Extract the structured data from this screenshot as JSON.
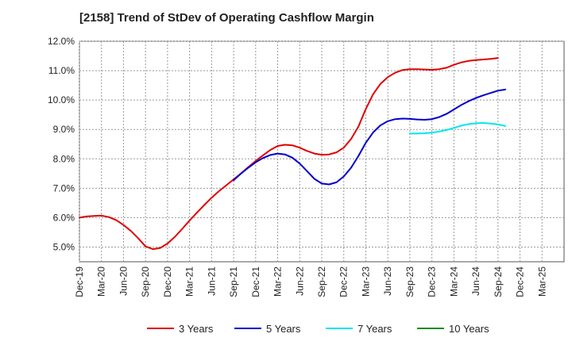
{
  "chart_data": {
    "type": "line",
    "title": "[2158]  Trend of StDev of Operating Cashflow Margin",
    "xlabel": "",
    "ylabel": "",
    "ylim": [
      4.5,
      12.0
    ],
    "yticks": [
      "12.0%",
      "11.0%",
      "10.0%",
      "9.0%",
      "8.0%",
      "7.0%",
      "6.0%",
      "5.0%"
    ],
    "ytick_values": [
      12,
      11,
      10,
      9,
      8,
      7,
      6,
      5
    ],
    "x_ticks": [
      "Dec-19",
      "Mar-20",
      "Jun-20",
      "Sep-20",
      "Dec-20",
      "Mar-21",
      "Jun-21",
      "Sep-21",
      "Dec-21",
      "Mar-22",
      "Jun-22",
      "Sep-22",
      "Dec-22",
      "Mar-23",
      "Jun-23",
      "Sep-23",
      "Dec-23",
      "Mar-24",
      "Jun-24",
      "Sep-24",
      "Dec-24",
      "Mar-25"
    ],
    "grid": true,
    "legend_position": "bottom",
    "series": [
      {
        "name": "3 Years",
        "color": "#e00000",
        "values": [
          {
            "x": "Dec-19",
            "y": 6.0
          },
          {
            "x": "Jan-20",
            "y": 6.04
          },
          {
            "x": "Feb-20",
            "y": 6.06
          },
          {
            "x": "Mar-20",
            "y": 6.07
          },
          {
            "x": "Apr-20",
            "y": 6.02
          },
          {
            "x": "May-20",
            "y": 5.92
          },
          {
            "x": "Jun-20",
            "y": 5.75
          },
          {
            "x": "Jul-20",
            "y": 5.55
          },
          {
            "x": "Aug-20",
            "y": 5.3
          },
          {
            "x": "Sep-20",
            "y": 5.02
          },
          {
            "x": "Oct-20",
            "y": 4.93
          },
          {
            "x": "Nov-20",
            "y": 4.97
          },
          {
            "x": "Dec-20",
            "y": 5.12
          },
          {
            "x": "Jan-21",
            "y": 5.35
          },
          {
            "x": "Feb-21",
            "y": 5.62
          },
          {
            "x": "Mar-21",
            "y": 5.9
          },
          {
            "x": "Apr-21",
            "y": 6.17
          },
          {
            "x": "May-21",
            "y": 6.43
          },
          {
            "x": "Jun-21",
            "y": 6.68
          },
          {
            "x": "Jul-21",
            "y": 6.9
          },
          {
            "x": "Aug-21",
            "y": 7.1
          },
          {
            "x": "Sep-21",
            "y": 7.3
          },
          {
            "x": "Oct-21",
            "y": 7.5
          },
          {
            "x": "Nov-21",
            "y": 7.72
          },
          {
            "x": "Dec-21",
            "y": 7.93
          },
          {
            "x": "Jan-22",
            "y": 8.12
          },
          {
            "x": "Feb-22",
            "y": 8.3
          },
          {
            "x": "Mar-22",
            "y": 8.44
          },
          {
            "x": "Apr-22",
            "y": 8.48
          },
          {
            "x": "May-22",
            "y": 8.46
          },
          {
            "x": "Jun-22",
            "y": 8.38
          },
          {
            "x": "Jul-22",
            "y": 8.27
          },
          {
            "x": "Aug-22",
            "y": 8.18
          },
          {
            "x": "Sep-22",
            "y": 8.14
          },
          {
            "x": "Oct-22",
            "y": 8.15
          },
          {
            "x": "Nov-22",
            "y": 8.22
          },
          {
            "x": "Dec-22",
            "y": 8.38
          },
          {
            "x": "Jan-23",
            "y": 8.68
          },
          {
            "x": "Feb-23",
            "y": 9.1
          },
          {
            "x": "Mar-23",
            "y": 9.7
          },
          {
            "x": "Apr-23",
            "y": 10.2
          },
          {
            "x": "May-23",
            "y": 10.55
          },
          {
            "x": "Jun-23",
            "y": 10.78
          },
          {
            "x": "Jul-23",
            "y": 10.93
          },
          {
            "x": "Aug-23",
            "y": 11.02
          },
          {
            "x": "Sep-23",
            "y": 11.05
          },
          {
            "x": "Oct-23",
            "y": 11.05
          },
          {
            "x": "Nov-23",
            "y": 11.04
          },
          {
            "x": "Dec-23",
            "y": 11.03
          },
          {
            "x": "Jan-24",
            "y": 11.05
          },
          {
            "x": "Feb-24",
            "y": 11.1
          },
          {
            "x": "Mar-24",
            "y": 11.2
          },
          {
            "x": "Apr-24",
            "y": 11.28
          },
          {
            "x": "May-24",
            "y": 11.33
          },
          {
            "x": "Jun-24",
            "y": 11.36
          },
          {
            "x": "Jul-24",
            "y": 11.38
          },
          {
            "x": "Aug-24",
            "y": 11.4
          },
          {
            "x": "Sep-24",
            "y": 11.43
          }
        ]
      },
      {
        "name": "5 Years",
        "color": "#0000cc",
        "values": [
          {
            "x": "Sep-21",
            "y": 7.27
          },
          {
            "x": "Oct-21",
            "y": 7.5
          },
          {
            "x": "Nov-21",
            "y": 7.7
          },
          {
            "x": "Dec-21",
            "y": 7.88
          },
          {
            "x": "Jan-22",
            "y": 8.03
          },
          {
            "x": "Feb-22",
            "y": 8.13
          },
          {
            "x": "Mar-22",
            "y": 8.18
          },
          {
            "x": "Apr-22",
            "y": 8.15
          },
          {
            "x": "May-22",
            "y": 8.04
          },
          {
            "x": "Jun-22",
            "y": 7.84
          },
          {
            "x": "Jul-22",
            "y": 7.58
          },
          {
            "x": "Aug-22",
            "y": 7.32
          },
          {
            "x": "Sep-22",
            "y": 7.16
          },
          {
            "x": "Oct-22",
            "y": 7.13
          },
          {
            "x": "Nov-22",
            "y": 7.2
          },
          {
            "x": "Dec-22",
            "y": 7.4
          },
          {
            "x": "Jan-23",
            "y": 7.7
          },
          {
            "x": "Feb-23",
            "y": 8.1
          },
          {
            "x": "Mar-23",
            "y": 8.55
          },
          {
            "x": "Apr-23",
            "y": 8.9
          },
          {
            "x": "May-23",
            "y": 9.14
          },
          {
            "x": "Jun-23",
            "y": 9.28
          },
          {
            "x": "Jul-23",
            "y": 9.35
          },
          {
            "x": "Aug-23",
            "y": 9.37
          },
          {
            "x": "Sep-23",
            "y": 9.36
          },
          {
            "x": "Oct-23",
            "y": 9.34
          },
          {
            "x": "Nov-23",
            "y": 9.33
          },
          {
            "x": "Dec-23",
            "y": 9.35
          },
          {
            "x": "Jan-24",
            "y": 9.42
          },
          {
            "x": "Feb-24",
            "y": 9.53
          },
          {
            "x": "Mar-24",
            "y": 9.68
          },
          {
            "x": "Apr-24",
            "y": 9.83
          },
          {
            "x": "May-24",
            "y": 9.96
          },
          {
            "x": "Jun-24",
            "y": 10.07
          },
          {
            "x": "Jul-24",
            "y": 10.16
          },
          {
            "x": "Aug-24",
            "y": 10.24
          },
          {
            "x": "Sep-24",
            "y": 10.32
          },
          {
            "x": "Oct-24",
            "y": 10.36
          }
        ]
      },
      {
        "name": "7 Years",
        "color": "#00e5ee",
        "values": [
          {
            "x": "Sep-23",
            "y": 8.86
          },
          {
            "x": "Oct-23",
            "y": 8.86
          },
          {
            "x": "Nov-23",
            "y": 8.87
          },
          {
            "x": "Dec-23",
            "y": 8.89
          },
          {
            "x": "Jan-24",
            "y": 8.93
          },
          {
            "x": "Feb-24",
            "y": 8.98
          },
          {
            "x": "Mar-24",
            "y": 9.05
          },
          {
            "x": "Apr-24",
            "y": 9.13
          },
          {
            "x": "May-24",
            "y": 9.18
          },
          {
            "x": "Jun-24",
            "y": 9.21
          },
          {
            "x": "Jul-24",
            "y": 9.22
          },
          {
            "x": "Aug-24",
            "y": 9.2
          },
          {
            "x": "Sep-24",
            "y": 9.17
          },
          {
            "x": "Oct-24",
            "y": 9.12
          }
        ]
      },
      {
        "name": "10 Years",
        "color": "#1a8a1a",
        "values": []
      }
    ]
  }
}
